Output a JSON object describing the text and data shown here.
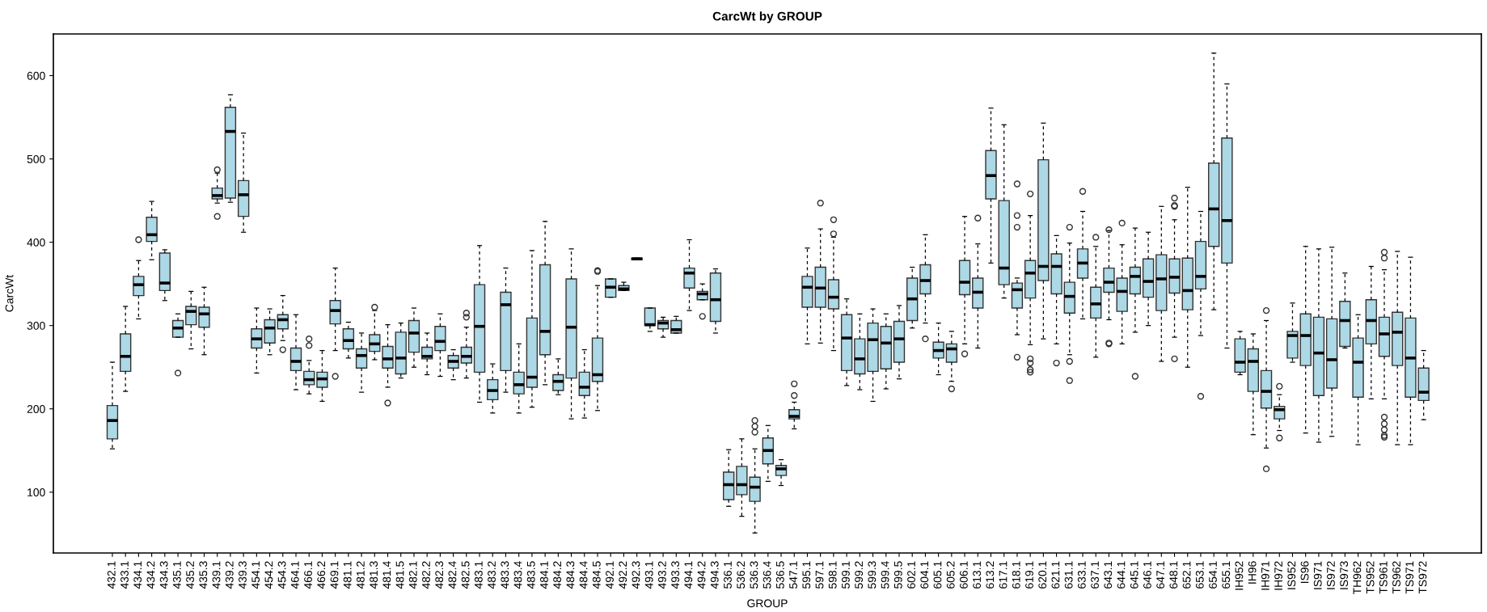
{
  "chart_data": {
    "type": "box",
    "title": "CarcWt by GROUP",
    "xlabel": "GROUP",
    "ylabel": "CarcWt",
    "color": "#add8e6",
    "grid": false,
    "legend": false,
    "ylim": [
      27,
      650
    ],
    "yticks": [
      100,
      200,
      300,
      400,
      500,
      600
    ],
    "categories": [
      "432.1",
      "433.1",
      "434.1",
      "434.2",
      "434.3",
      "435.1",
      "435.2",
      "435.3",
      "439.1",
      "439.2",
      "439.3",
      "454.1",
      "454.2",
      "454.3",
      "464.1",
      "466.1",
      "466.2",
      "469.1",
      "481.1",
      "481.2",
      "481.3",
      "481.4",
      "481.5",
      "482.1",
      "482.2",
      "482.3",
      "482.4",
      "482.5",
      "483.1",
      "483.2",
      "483.3",
      "483.4",
      "483.5",
      "484.1",
      "484.2",
      "484.3",
      "484.4",
      "484.5",
      "492.1",
      "492.2",
      "492.3",
      "493.1",
      "493.2",
      "493.3",
      "494.1",
      "494.2",
      "494.3",
      "536.1",
      "536.2",
      "536.3",
      "536.4",
      "536.5",
      "547.1",
      "595.1",
      "597.1",
      "598.1",
      "599.1",
      "599.2",
      "599.3",
      "599.4",
      "599.5",
      "602.1",
      "604.1",
      "605.1",
      "605.2",
      "606.1",
      "613.1",
      "613.2",
      "617.1",
      "618.1",
      "619.1",
      "620.1",
      "621.1",
      "631.1",
      "633.1",
      "637.1",
      "643.1",
      "644.1",
      "645.1",
      "646.1",
      "647.1",
      "648.1",
      "652.1",
      "653.1",
      "654.1",
      "655.1",
      "IH952",
      "IH96",
      "IH971",
      "IH972",
      "IS952",
      "IS96",
      "IS971",
      "IS972",
      "IS973",
      "TH962",
      "TS952",
      "TS961",
      "TS962",
      "TS971",
      "TS972"
    ],
    "boxes": [
      {
        "low": 152,
        "q1": 164,
        "median": 186,
        "q3": 204,
        "high": 256
      },
      {
        "low": 221,
        "q1": 245,
        "median": 263,
        "q3": 290,
        "high": 323
      },
      {
        "low": 308,
        "q1": 336,
        "median": 349,
        "q3": 359,
        "high": 378,
        "outliers": [
          403
        ]
      },
      {
        "low": 379,
        "q1": 401,
        "median": 409,
        "q3": 430,
        "high": 449
      },
      {
        "low": 330,
        "q1": 342,
        "median": 351,
        "q3": 387,
        "high": 391
      },
      {
        "low": 286,
        "q1": 286,
        "median": 297,
        "q3": 306,
        "high": 314,
        "outliers": [
          243
        ]
      },
      {
        "low": 272,
        "q1": 301,
        "median": 317,
        "q3": 323,
        "high": 341
      },
      {
        "low": 265,
        "q1": 298,
        "median": 314,
        "q3": 322,
        "high": 346
      },
      {
        "low": 447,
        "q1": 452,
        "median": 456,
        "q3": 465,
        "high": 483,
        "outliers": [
          487,
          431
        ]
      },
      {
        "low": 448,
        "q1": 453,
        "median": 533,
        "q3": 562,
        "high": 577
      },
      {
        "low": 412,
        "q1": 431,
        "median": 457,
        "q3": 474,
        "high": 531
      },
      {
        "low": 243,
        "q1": 273,
        "median": 284,
        "q3": 296,
        "high": 321
      },
      {
        "low": 265,
        "q1": 279,
        "median": 297,
        "q3": 307,
        "high": 320
      },
      {
        "low": 282,
        "q1": 296,
        "median": 307,
        "q3": 313,
        "high": 336,
        "outliers": [
          271
        ]
      },
      {
        "low": 223,
        "q1": 246,
        "median": 257,
        "q3": 273,
        "high": 313
      },
      {
        "low": 218,
        "q1": 229,
        "median": 235,
        "q3": 245,
        "high": 258,
        "outliers": [
          284,
          276
        ]
      },
      {
        "low": 209,
        "q1": 226,
        "median": 236,
        "q3": 244,
        "high": 270
      },
      {
        "low": 270,
        "q1": 302,
        "median": 318,
        "q3": 330,
        "high": 369,
        "outliers": [
          239
        ]
      },
      {
        "low": 261,
        "q1": 272,
        "median": 282,
        "q3": 296,
        "high": 304
      },
      {
        "low": 220,
        "q1": 249,
        "median": 264,
        "q3": 272,
        "high": 291
      },
      {
        "low": 259,
        "q1": 269,
        "median": 278,
        "q3": 289,
        "high": 318,
        "outliers": [
          322
        ]
      },
      {
        "low": 226,
        "q1": 249,
        "median": 260,
        "q3": 275,
        "high": 301,
        "outliers": [
          207
        ]
      },
      {
        "low": 237,
        "q1": 242,
        "median": 261,
        "q3": 292,
        "high": 303
      },
      {
        "low": 250,
        "q1": 268,
        "median": 291,
        "q3": 306,
        "high": 321
      },
      {
        "low": 241,
        "q1": 260,
        "median": 263,
        "q3": 274,
        "high": 291
      },
      {
        "low": 239,
        "q1": 270,
        "median": 281,
        "q3": 299,
        "high": 314
      },
      {
        "low": 235,
        "q1": 249,
        "median": 257,
        "q3": 264,
        "high": 271
      },
      {
        "low": 237,
        "q1": 255,
        "median": 263,
        "q3": 274,
        "high": 298,
        "outliers": [
          315,
          310
        ]
      },
      {
        "low": 208,
        "q1": 244,
        "median": 299,
        "q3": 349,
        "high": 396
      },
      {
        "low": 195,
        "q1": 211,
        "median": 222,
        "q3": 235,
        "high": 254
      },
      {
        "low": 220,
        "q1": 246,
        "median": 325,
        "q3": 340,
        "high": 369
      },
      {
        "low": 195,
        "q1": 218,
        "median": 229,
        "q3": 244,
        "high": 278
      },
      {
        "low": 202,
        "q1": 226,
        "median": 238,
        "q3": 309,
        "high": 390
      },
      {
        "low": 229,
        "q1": 265,
        "median": 293,
        "q3": 373,
        "high": 425
      },
      {
        "low": 217,
        "q1": 222,
        "median": 233,
        "q3": 241,
        "high": 260
      },
      {
        "low": 188,
        "q1": 237,
        "median": 298,
        "q3": 356,
        "high": 392
      },
      {
        "low": 189,
        "q1": 216,
        "median": 226,
        "q3": 244,
        "high": 271
      },
      {
        "low": 198,
        "q1": 233,
        "median": 241,
        "q3": 285,
        "high": 348,
        "outliers": [
          365,
          366
        ]
      },
      {
        "low": 334,
        "q1": 334,
        "median": 346,
        "q3": 356,
        "high": 356
      },
      {
        "low": 342,
        "q1": 342,
        "median": 344,
        "q3": 348,
        "high": 352
      },
      {
        "low": 379,
        "q1": 379,
        "median": 380,
        "q3": 381,
        "high": 381
      },
      {
        "low": 293,
        "q1": 300,
        "median": 301,
        "q3": 321,
        "high": 321
      },
      {
        "low": 286,
        "q1": 296,
        "median": 303,
        "q3": 306,
        "high": 310
      },
      {
        "low": 291,
        "q1": 291,
        "median": 295,
        "q3": 306,
        "high": 311
      },
      {
        "low": 318,
        "q1": 345,
        "median": 363,
        "q3": 369,
        "high": 403
      },
      {
        "low": 331,
        "q1": 331,
        "median": 338,
        "q3": 341,
        "high": 350,
        "outliers": [
          311
        ]
      },
      {
        "low": 291,
        "q1": 305,
        "median": 331,
        "q3": 363,
        "high": 368
      },
      {
        "low": 83,
        "q1": 91,
        "median": 109,
        "q3": 124,
        "high": 151
      },
      {
        "low": 71,
        "q1": 97,
        "median": 109,
        "q3": 131,
        "high": 164
      },
      {
        "low": 51,
        "q1": 89,
        "median": 106,
        "q3": 118,
        "high": 152,
        "outliers": [
          186,
          179,
          172
        ]
      },
      {
        "low": 113,
        "q1": 134,
        "median": 150,
        "q3": 165,
        "high": 180
      },
      {
        "low": 108,
        "q1": 120,
        "median": 128,
        "q3": 132,
        "high": 139
      },
      {
        "low": 176,
        "q1": 188,
        "median": 191,
        "q3": 199,
        "high": 208,
        "outliers": [
          230,
          216
        ]
      },
      {
        "low": 278,
        "q1": 322,
        "median": 346,
        "q3": 359,
        "high": 393
      },
      {
        "low": 279,
        "q1": 322,
        "median": 345,
        "q3": 370,
        "high": 416,
        "outliers": [
          447
        ]
      },
      {
        "low": 270,
        "q1": 320,
        "median": 334,
        "q3": 355,
        "high": 406,
        "outliers": [
          427,
          410
        ]
      },
      {
        "low": 228,
        "q1": 246,
        "median": 285,
        "q3": 313,
        "high": 332
      },
      {
        "low": 223,
        "q1": 242,
        "median": 260,
        "q3": 284,
        "high": 314
      },
      {
        "low": 209,
        "q1": 245,
        "median": 283,
        "q3": 303,
        "high": 320
      },
      {
        "low": 224,
        "q1": 248,
        "median": 279,
        "q3": 299,
        "high": 314
      },
      {
        "low": 236,
        "q1": 256,
        "median": 284,
        "q3": 305,
        "high": 324
      },
      {
        "low": 297,
        "q1": 306,
        "median": 332,
        "q3": 357,
        "high": 370
      },
      {
        "low": 303,
        "q1": 338,
        "median": 354,
        "q3": 373,
        "high": 409,
        "outliers": [
          284
        ]
      },
      {
        "low": 241,
        "q1": 261,
        "median": 270,
        "q3": 280,
        "high": 303
      },
      {
        "low": 233,
        "q1": 256,
        "median": 272,
        "q3": 278,
        "high": 293,
        "outliers": [
          224
        ]
      },
      {
        "low": 278,
        "q1": 337,
        "median": 352,
        "q3": 378,
        "high": 431,
        "outliers": [
          266
        ]
      },
      {
        "low": 273,
        "q1": 321,
        "median": 340,
        "q3": 357,
        "high": 398,
        "outliers": [
          429
        ]
      },
      {
        "low": 375,
        "q1": 452,
        "median": 480,
        "q3": 510,
        "high": 561
      },
      {
        "low": 333,
        "q1": 349,
        "median": 369,
        "q3": 450,
        "high": 541
      },
      {
        "low": 289,
        "q1": 321,
        "median": 343,
        "q3": 351,
        "high": 357,
        "outliers": [
          470,
          432,
          418,
          262
        ]
      },
      {
        "low": 277,
        "q1": 333,
        "median": 363,
        "q3": 378,
        "high": 432,
        "outliers": [
          458,
          260,
          255,
          247,
          244
        ]
      },
      {
        "low": 284,
        "q1": 354,
        "median": 371,
        "q3": 499,
        "high": 543
      },
      {
        "low": 278,
        "q1": 338,
        "median": 371,
        "q3": 386,
        "high": 408,
        "outliers": [
          255
        ]
      },
      {
        "low": 265,
        "q1": 315,
        "median": 335,
        "q3": 352,
        "high": 399,
        "outliers": [
          418,
          257,
          234
        ]
      },
      {
        "low": 308,
        "q1": 357,
        "median": 375,
        "q3": 392,
        "high": 437,
        "outliers": [
          461
        ]
      },
      {
        "low": 262,
        "q1": 309,
        "median": 326,
        "q3": 346,
        "high": 395,
        "outliers": [
          406
        ]
      },
      {
        "low": 307,
        "q1": 340,
        "median": 352,
        "q3": 369,
        "high": 414,
        "outliers": [
          415,
          279,
          278
        ]
      },
      {
        "low": 278,
        "q1": 317,
        "median": 341,
        "q3": 357,
        "high": 397,
        "outliers": [
          423
        ]
      },
      {
        "low": 292,
        "q1": 338,
        "median": 359,
        "q3": 370,
        "high": 417,
        "outliers": [
          239
        ]
      },
      {
        "low": 300,
        "q1": 334,
        "median": 353,
        "q3": 380,
        "high": 412
      },
      {
        "low": 257,
        "q1": 318,
        "median": 356,
        "q3": 385,
        "high": 443
      },
      {
        "low": 286,
        "q1": 339,
        "median": 358,
        "q3": 380,
        "high": 427,
        "outliers": [
          453,
          444,
          443,
          260
        ]
      },
      {
        "low": 250,
        "q1": 319,
        "median": 342,
        "q3": 381,
        "high": 466
      },
      {
        "low": 288,
        "q1": 344,
        "median": 359,
        "q3": 401,
        "high": 437,
        "outliers": [
          215
        ]
      },
      {
        "low": 319,
        "q1": 395,
        "median": 440,
        "q3": 495,
        "high": 627
      },
      {
        "low": 273,
        "q1": 375,
        "median": 426,
        "q3": 525,
        "high": 590
      },
      {
        "low": 241,
        "q1": 244,
        "median": 256,
        "q3": 284,
        "high": 293
      },
      {
        "low": 169,
        "q1": 221,
        "median": 257,
        "q3": 272,
        "high": 290
      },
      {
        "low": 153,
        "q1": 201,
        "median": 221,
        "q3": 246,
        "high": 306,
        "outliers": [
          318,
          128
        ]
      },
      {
        "low": 174,
        "q1": 188,
        "median": 199,
        "q3": 203,
        "high": 217,
        "outliers": [
          227,
          165
        ]
      },
      {
        "low": 256,
        "q1": 261,
        "median": 288,
        "q3": 293,
        "high": 327
      },
      {
        "low": 171,
        "q1": 252,
        "median": 288,
        "q3": 314,
        "high": 395
      },
      {
        "low": 160,
        "q1": 216,
        "median": 267,
        "q3": 310,
        "high": 392
      },
      {
        "low": 167,
        "q1": 225,
        "median": 259,
        "q3": 308,
        "high": 394
      },
      {
        "low": 273,
        "q1": 275,
        "median": 306,
        "q3": 329,
        "high": 363
      },
      {
        "low": 157,
        "q1": 214,
        "median": 256,
        "q3": 285,
        "high": 313
      },
      {
        "low": 212,
        "q1": 278,
        "median": 306,
        "q3": 331,
        "high": 371
      },
      {
        "low": 212,
        "q1": 263,
        "median": 290,
        "q3": 310,
        "high": 367,
        "outliers": [
          388,
          381,
          190,
          182,
          175,
          168,
          166
        ]
      },
      {
        "low": 157,
        "q1": 252,
        "median": 292,
        "q3": 316,
        "high": 389
      },
      {
        "low": 157,
        "q1": 214,
        "median": 261,
        "q3": 309,
        "high": 382
      },
      {
        "low": 187,
        "q1": 210,
        "median": 220,
        "q3": 249,
        "high": 270
      }
    ]
  }
}
